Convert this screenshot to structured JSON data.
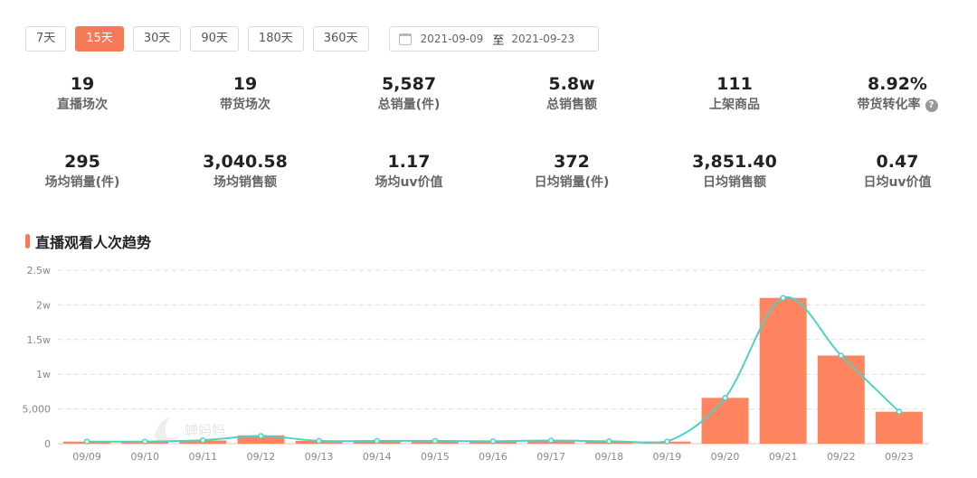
{
  "range_buttons": [
    {
      "label": "7天",
      "active": false
    },
    {
      "label": "15天",
      "active": true
    },
    {
      "label": "30天",
      "active": false
    },
    {
      "label": "90天",
      "active": false
    },
    {
      "label": "180天",
      "active": false
    },
    {
      "label": "360天",
      "active": false
    }
  ],
  "date_range": {
    "start": "2021-09-09",
    "separator": "至",
    "end": "2021-09-23"
  },
  "stats": [
    {
      "value": "19",
      "label": "直播场次"
    },
    {
      "value": "19",
      "label": "带货场次"
    },
    {
      "value": "5,587",
      "label": "总销量(件)"
    },
    {
      "value": "5.8w",
      "label": "总销售额"
    },
    {
      "value": "111",
      "label": "上架商品"
    },
    {
      "value": "8.92%",
      "label": "带货转化率",
      "help": "?"
    },
    {
      "value": "295",
      "label": "场均销量(件)"
    },
    {
      "value": "3,040.58",
      "label": "场均销售额"
    },
    {
      "value": "1.17",
      "label": "场均uv价值"
    },
    {
      "value": "372",
      "label": "日均销量(件)"
    },
    {
      "value": "3,851.40",
      "label": "日均销售额"
    },
    {
      "value": "0.47",
      "label": "日均uv价值"
    }
  ],
  "section": {
    "title": "直播观看人次趋势"
  },
  "watermark": "蝉妈妈",
  "colors": {
    "accent": "#f47a58",
    "bar": "#ff8560",
    "line": "#4fd1c5"
  },
  "chart_data": {
    "type": "bar",
    "categories": [
      "09/09",
      "09/10",
      "09/11",
      "09/12",
      "09/13",
      "09/14",
      "09/15",
      "09/16",
      "09/17",
      "09/18",
      "09/19",
      "09/20",
      "09/21",
      "09/22",
      "09/23"
    ],
    "series": [
      {
        "values": [
          300,
          350,
          450,
          1200,
          400,
          400,
          350,
          350,
          450,
          350,
          300,
          6600,
          21000,
          12700,
          4600
        ]
      },
      {
        "type": "line",
        "values": [
          300,
          300,
          500,
          1100,
          400,
          400,
          400,
          350,
          450,
          350,
          300,
          6600,
          21000,
          12700,
          4600
        ]
      }
    ],
    "yticks": [
      "0",
      "5,000",
      "1w",
      "1.5w",
      "2w",
      "2.5w"
    ],
    "ylim": [
      0,
      25000
    ],
    "grid": true
  }
}
